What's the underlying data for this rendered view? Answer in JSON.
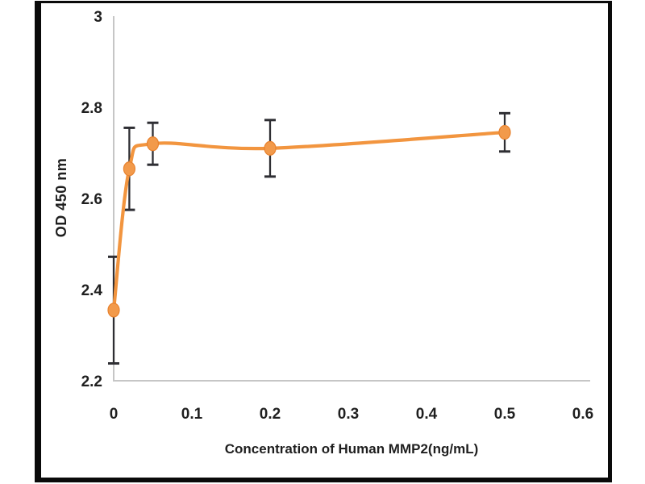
{
  "chart_data": {
    "type": "line",
    "title": "",
    "xlabel": "Concentration of Human MMP2(ng/mL)",
    "ylabel": "OD 450 nm",
    "x": [
      0,
      0.02,
      0.05,
      0.2,
      0.5
    ],
    "values": [
      2.355,
      2.665,
      2.72,
      2.71,
      2.745
    ],
    "errors": [
      0.117,
      0.09,
      0.046,
      0.062,
      0.042
    ],
    "xlim": [
      0,
      0.6
    ],
    "ylim": [
      2.2,
      3.0
    ],
    "xticks": {
      "values": [
        0,
        0.1,
        0.2,
        0.3,
        0.4,
        0.5,
        0.6
      ],
      "labels": [
        "0",
        "0.1",
        "0.2",
        "0.3",
        "0.4",
        "0.5",
        "0.6"
      ]
    },
    "yticks": {
      "values": [
        3.0,
        2.8,
        2.6,
        2.4,
        2.2
      ],
      "labels": [
        "3",
        "2.8",
        "2.6",
        "2.4",
        "2.2"
      ]
    },
    "grid": false,
    "legend": false,
    "line_smoothing": true,
    "marker": "circle",
    "colors": {
      "line": "#F2953F",
      "marker_fill": "#F29A4B",
      "marker_edge": "#E8822E",
      "error_bar": "#2E2E33",
      "axis": "#C6C6C6",
      "tick_text": "#1F1F1F",
      "frame": "#0A0A0A",
      "background": "#FFFFFF"
    }
  }
}
